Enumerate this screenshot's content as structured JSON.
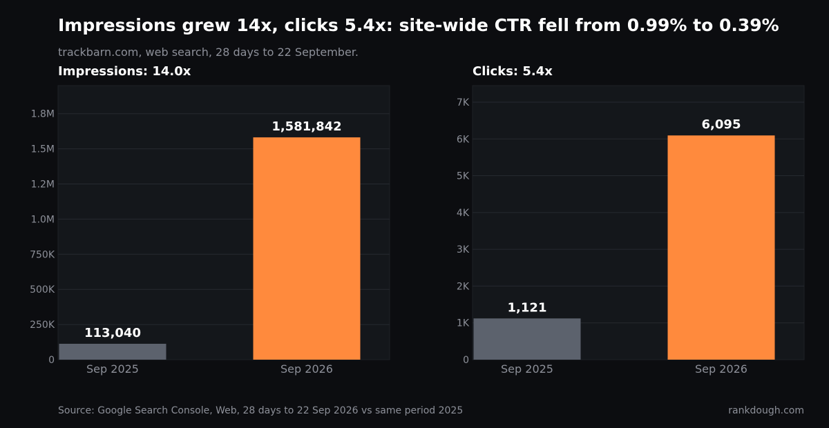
{
  "header": {
    "title": "Impressions grew 14x, clicks 5.4x: site-wide CTR fell from 0.99% to 0.39%",
    "subtitle": "trackbarn.com, web search, 28 days to 22 September."
  },
  "footer": {
    "source": "Source: Google Search Console, Web, 28 days to 22 Sep 2026 vs same period 2025",
    "brand": "rankdough.com"
  },
  "colors": {
    "background": "#0c0d10",
    "panel": "#14171b",
    "grid": "#262a30",
    "bar_previous": "#5c626d",
    "bar_current": "#ff8a3d",
    "text_muted": "#8d9099",
    "text_main": "#ffffff"
  },
  "chart_data": [
    {
      "type": "bar",
      "title": "Impressions: 14.0x",
      "categories": [
        "Sep 2025",
        "Sep 2026"
      ],
      "values": [
        113040,
        1581842
      ],
      "value_labels": [
        "113,040",
        "1,581,842"
      ],
      "ylim": [
        0,
        1950000
      ],
      "yticks": [
        0,
        250000,
        500000,
        750000,
        1000000,
        1250000,
        1500000,
        1750000
      ],
      "ytick_labels": [
        "0",
        "250K",
        "500K",
        "750K",
        "1.0M",
        "1.2M",
        "1.5M",
        "1.8M"
      ],
      "grid": true
    },
    {
      "type": "bar",
      "title": "Clicks: 5.4x",
      "categories": [
        "Sep 2025",
        "Sep 2026"
      ],
      "values": [
        1121,
        6095
      ],
      "value_labels": [
        "1,121",
        "6,095"
      ],
      "ylim": [
        0,
        7450
      ],
      "yticks": [
        0,
        1000,
        2000,
        3000,
        4000,
        5000,
        6000,
        7000
      ],
      "ytick_labels": [
        "0",
        "1K",
        "2K",
        "3K",
        "4K",
        "5K",
        "6K",
        "7K"
      ],
      "grid": true
    }
  ]
}
